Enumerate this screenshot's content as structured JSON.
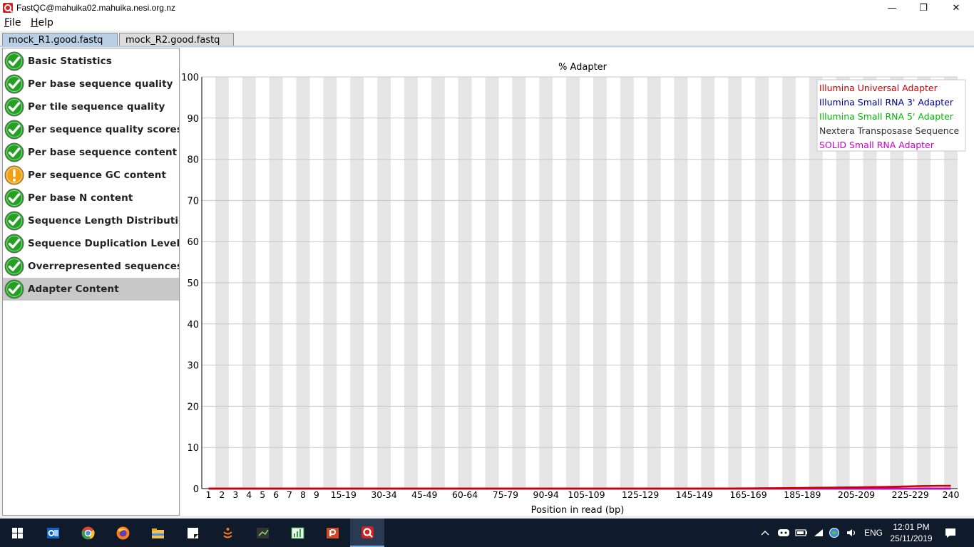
{
  "window": {
    "title": "FastQC@mahuika02.mahuika.nesi.org.nz",
    "minimize_glyph": "—",
    "maximize_glyph": "❐",
    "close_glyph": "✕"
  },
  "menu": {
    "file": "File",
    "help": "Help"
  },
  "tabs": [
    {
      "label": "mock_R1.good.fastq",
      "active": true
    },
    {
      "label": "mock_R2.good.fastq",
      "active": false
    }
  ],
  "modules": [
    {
      "label": "Basic Statistics",
      "status": "pass"
    },
    {
      "label": "Per base sequence quality",
      "status": "pass"
    },
    {
      "label": "Per tile sequence quality",
      "status": "pass"
    },
    {
      "label": "Per sequence quality scores",
      "status": "pass"
    },
    {
      "label": "Per base sequence content",
      "status": "pass"
    },
    {
      "label": "Per sequence GC content",
      "status": "warn"
    },
    {
      "label": "Per base N content",
      "status": "pass"
    },
    {
      "label": "Sequence Length Distribution",
      "status": "pass"
    },
    {
      "label": "Sequence Duplication Levels",
      "status": "pass"
    },
    {
      "label": "Overrepresented sequences",
      "status": "pass"
    },
    {
      "label": "Adapter Content",
      "status": "pass",
      "selected": true
    }
  ],
  "status_colors": {
    "pass": "#22a022",
    "warn": "#f0a010"
  },
  "chart_data": {
    "type": "line",
    "title": "% Adapter",
    "xlabel": "Position in read (bp)",
    "ylabel": "",
    "ylim": [
      0,
      100
    ],
    "yticks": [
      0,
      10,
      20,
      30,
      40,
      50,
      60,
      70,
      80,
      90,
      100
    ],
    "categories": [
      "1",
      "2",
      "3",
      "4",
      "5",
      "6",
      "7",
      "8",
      "9",
      "10-14",
      "15-19",
      "20-24",
      "25-29",
      "30-34",
      "35-39",
      "40-44",
      "45-49",
      "50-54",
      "55-59",
      "60-64",
      "65-69",
      "70-74",
      "75-79",
      "80-84",
      "85-89",
      "90-94",
      "95-99",
      "100-104",
      "105-109",
      "110-114",
      "115-119",
      "120-124",
      "125-129",
      "130-134",
      "135-139",
      "140-144",
      "145-149",
      "150-154",
      "155-159",
      "160-164",
      "165-169",
      "170-174",
      "175-179",
      "180-184",
      "185-189",
      "190-194",
      "195-199",
      "200-204",
      "205-209",
      "210-214",
      "215-219",
      "220-224",
      "225-229",
      "230-234",
      "235-239",
      "240"
    ],
    "shown_tick_labels": [
      "1",
      "2",
      "3",
      "4",
      "5",
      "6",
      "7",
      "8",
      "9",
      "15-19",
      "30-34",
      "45-49",
      "60-64",
      "75-79",
      "90-94",
      "105-109",
      "125-129",
      "145-149",
      "165-169",
      "185-189",
      "205-209",
      "225-229",
      "240"
    ],
    "grid": true,
    "legend_position": "top-right",
    "series": [
      {
        "name": "Illumina Universal Adapter",
        "color": "#cc0000",
        "values": [
          0,
          0,
          0,
          0,
          0,
          0,
          0,
          0,
          0,
          0,
          0,
          0,
          0,
          0,
          0,
          0,
          0,
          0,
          0,
          0,
          0,
          0,
          0,
          0,
          0,
          0,
          0,
          0,
          0,
          0,
          0,
          0,
          0,
          0,
          0,
          0,
          0,
          0.01,
          0.03,
          0.05,
          0.07,
          0.09,
          0.11,
          0.14,
          0.17,
          0.2,
          0.24,
          0.28,
          0.32,
          0.37,
          0.42,
          0.48,
          0.55,
          0.62,
          0.68,
          0.7
        ]
      },
      {
        "name": "Illumina Small RNA 3' Adapter",
        "color": "#000099",
        "values": [
          0,
          0,
          0,
          0,
          0,
          0,
          0,
          0,
          0,
          0,
          0,
          0,
          0,
          0,
          0,
          0,
          0,
          0,
          0,
          0,
          0,
          0,
          0,
          0,
          0,
          0,
          0,
          0,
          0,
          0,
          0,
          0,
          0,
          0,
          0,
          0,
          0,
          0,
          0,
          0,
          0,
          0,
          0,
          0,
          0,
          0,
          0,
          0,
          0,
          0,
          0,
          0,
          0,
          0,
          0,
          0
        ]
      },
      {
        "name": "Illumina Small RNA 5' Adapter",
        "color": "#00bb00",
        "values": [
          0,
          0,
          0,
          0,
          0,
          0,
          0,
          0,
          0,
          0,
          0,
          0,
          0,
          0,
          0,
          0,
          0,
          0,
          0,
          0,
          0,
          0,
          0,
          0,
          0,
          0,
          0,
          0,
          0,
          0,
          0,
          0,
          0,
          0,
          0,
          0,
          0,
          0,
          0,
          0,
          0,
          0,
          0,
          0,
          0,
          0,
          0,
          0,
          0,
          0,
          0,
          0,
          0,
          0,
          0,
          0
        ]
      },
      {
        "name": "Nextera Transposase Sequence",
        "color": "#333333",
        "values": [
          0,
          0,
          0,
          0,
          0,
          0,
          0,
          0,
          0,
          0,
          0,
          0,
          0,
          0,
          0,
          0,
          0,
          0,
          0,
          0,
          0,
          0,
          0,
          0,
          0,
          0,
          0,
          0,
          0,
          0,
          0,
          0,
          0,
          0,
          0,
          0,
          0,
          0,
          0,
          0,
          0,
          0,
          0,
          0,
          0,
          0,
          0,
          0,
          0,
          0,
          0,
          0,
          0,
          0,
          0,
          0
        ]
      },
      {
        "name": "SOLID Small RNA Adapter",
        "color": "#cc00cc",
        "values": [
          0,
          0,
          0,
          0,
          0,
          0,
          0,
          0,
          0,
          0,
          0,
          0,
          0,
          0,
          0,
          0,
          0,
          0,
          0,
          0,
          0,
          0,
          0,
          0,
          0,
          0,
          0,
          0,
          0,
          0,
          0,
          0,
          0,
          0,
          0,
          0,
          0,
          0,
          0,
          0,
          0,
          0,
          0,
          0,
          0,
          0,
          0,
          0,
          0,
          0,
          0,
          0,
          0,
          0,
          0,
          0
        ]
      }
    ]
  },
  "taskbar": {
    "icons": [
      "windows-start-icon",
      "outlook-icon",
      "chrome-icon",
      "firefox-icon",
      "file-explorer-icon",
      "notes-icon",
      "java-app-icon",
      "terminal-icon",
      "chart-app-icon",
      "powerpoint-icon",
      "fastqc-icon"
    ],
    "tray_language": "ENG",
    "clock_time": "12:01 PM",
    "clock_date": "25/11/2019"
  }
}
